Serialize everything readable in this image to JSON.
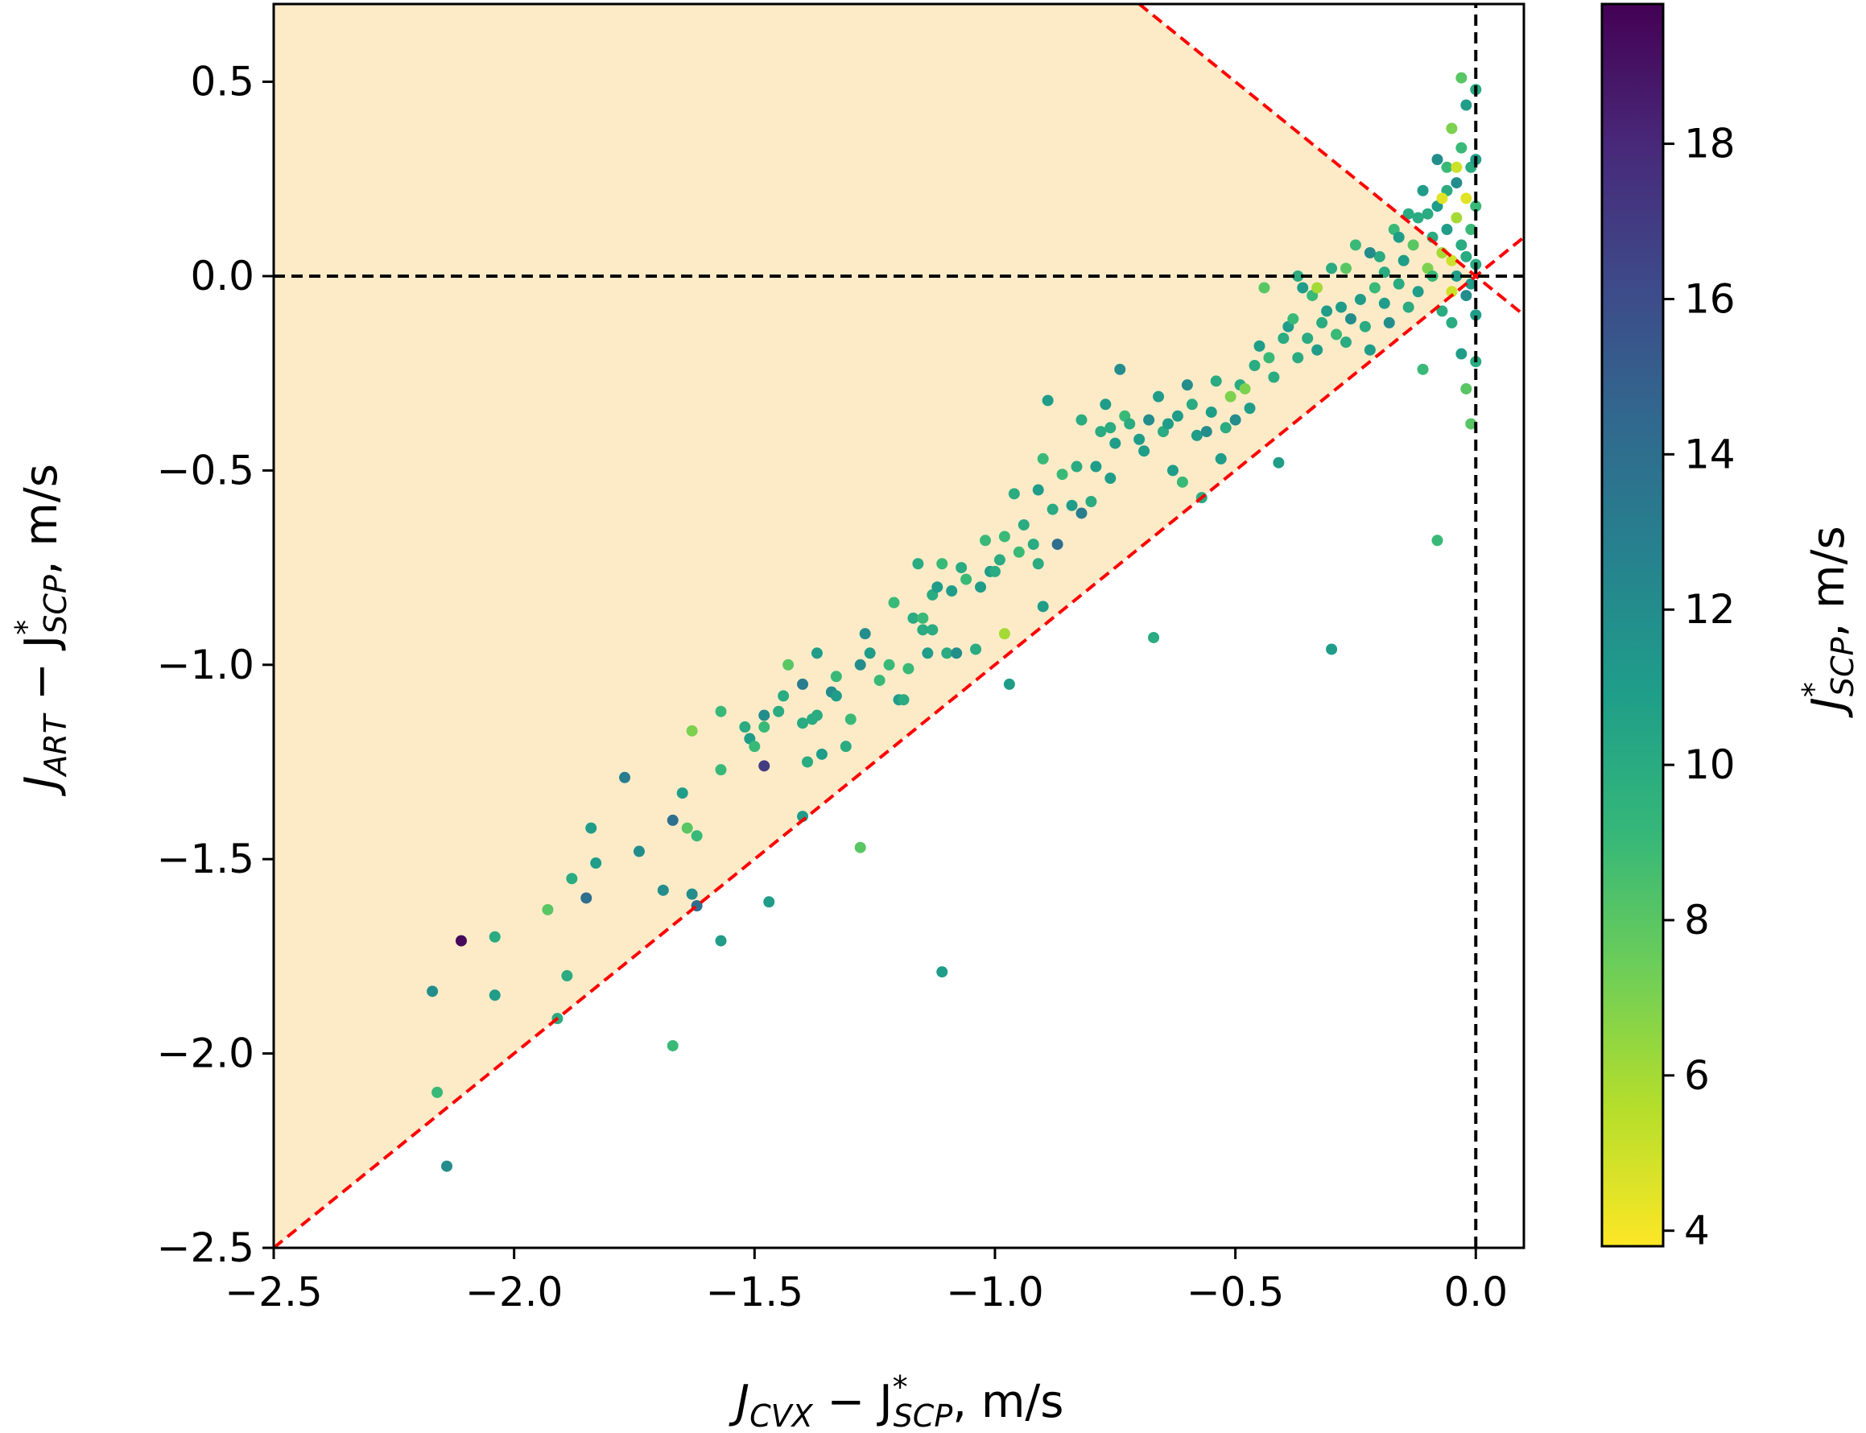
{
  "chart_data": {
    "type": "scatter",
    "title": "",
    "xlabel": {
      "main": "J",
      "sub1": "CVX",
      "mid": " − J",
      "sup": "*",
      "sub2": "SCP",
      "tail": ", m/s"
    },
    "ylabel": {
      "main": "J",
      "sub1": "ART",
      "mid": " − J",
      "sup": "*",
      "sub2": "SCP",
      "tail": ", m/s"
    },
    "colorbar_label": {
      "main": "J",
      "sup": "*",
      "sub": "SCP",
      "tail": ", m/s"
    },
    "xlim": [
      -2.5,
      0.1
    ],
    "ylim": [
      -2.5,
      0.7
    ],
    "xticks": [
      -2.5,
      -2.0,
      -1.5,
      -1.0,
      -0.5,
      0.0
    ],
    "xtick_labels": [
      "−2.5",
      "−2.0",
      "−1.5",
      "−1.0",
      "−0.5",
      "0.0"
    ],
    "yticks": [
      -2.5,
      -2.0,
      -1.5,
      -1.0,
      -0.5,
      0.0,
      0.5
    ],
    "ytick_labels": [
      "−2.5",
      "−2.0",
      "−1.5",
      "−1.0",
      "−0.5",
      "0.0",
      "0.5"
    ],
    "colorbar": {
      "range": [
        3.8,
        19.8
      ],
      "ticks": [
        4,
        6,
        8,
        10,
        12,
        14,
        16,
        18
      ],
      "tick_labels": [
        "4",
        "6",
        "8",
        "10",
        "12",
        "14",
        "16",
        "18"
      ],
      "colormap": "viridis_r",
      "stops": [
        "#fde725",
        "#b5de2b",
        "#6ece58",
        "#35b779",
        "#1f9e89",
        "#26828e",
        "#31688e",
        "#3e4989",
        "#482878",
        "#440154"
      ]
    },
    "shaded_region": {
      "color": "#fdebc8",
      "description": "between y=x and y=-x"
    },
    "reference_lines": [
      {
        "name": "y=x",
        "color": "#ff0000",
        "style": "dashed"
      },
      {
        "name": "y=-x",
        "color": "#ff0000",
        "style": "dashed"
      },
      {
        "name": "x=0",
        "color": "#000000",
        "style": "dashed"
      },
      {
        "name": "y=0",
        "color": "#000000",
        "style": "dashed"
      }
    ],
    "points": [
      [
        -2.11,
        -1.71,
        19.5
      ],
      [
        -2.17,
        -1.84,
        12
      ],
      [
        -2.04,
        -1.7,
        10
      ],
      [
        -2.04,
        -1.85,
        11
      ],
      [
        -2.16,
        -2.1,
        9
      ],
      [
        -2.14,
        -2.29,
        12
      ],
      [
        -1.93,
        -1.63,
        8
      ],
      [
        -1.91,
        -1.91,
        10
      ],
      [
        -1.89,
        -1.8,
        10
      ],
      [
        -1.88,
        -1.55,
        10
      ],
      [
        -1.85,
        -1.6,
        14
      ],
      [
        -1.84,
        -1.42,
        11
      ],
      [
        -1.83,
        -1.51,
        11
      ],
      [
        -1.77,
        -1.29,
        13
      ],
      [
        -1.74,
        -1.48,
        12
      ],
      [
        -1.69,
        -1.58,
        12
      ],
      [
        -1.67,
        -1.4,
        14
      ],
      [
        -1.67,
        -1.98,
        9
      ],
      [
        -1.65,
        -1.33,
        11
      ],
      [
        -1.64,
        -1.42,
        8
      ],
      [
        -1.63,
        -1.59,
        12
      ],
      [
        -1.62,
        -1.44,
        9
      ],
      [
        -1.63,
        -1.17,
        7
      ],
      [
        -1.62,
        -1.62,
        14
      ],
      [
        -1.57,
        -1.71,
        11
      ],
      [
        -1.57,
        -1.27,
        9
      ],
      [
        -1.57,
        -1.12,
        9
      ],
      [
        -1.52,
        -1.16,
        10
      ],
      [
        -1.51,
        -1.19,
        11
      ],
      [
        -1.5,
        -1.21,
        9
      ],
      [
        -1.48,
        -1.26,
        17
      ],
      [
        -1.48,
        -1.13,
        12
      ],
      [
        -1.48,
        -1.16,
        9
      ],
      [
        -1.47,
        -1.61,
        11
      ],
      [
        -1.45,
        -1.12,
        10
      ],
      [
        -1.44,
        -1.08,
        10
      ],
      [
        -1.43,
        -1.0,
        8
      ],
      [
        -1.4,
        -1.15,
        10
      ],
      [
        -1.4,
        -1.05,
        13
      ],
      [
        -1.4,
        -1.39,
        11
      ],
      [
        -1.39,
        -1.25,
        10
      ],
      [
        -1.38,
        -1.14,
        10
      ],
      [
        -1.37,
        -1.13,
        10
      ],
      [
        -1.37,
        -0.97,
        11
      ],
      [
        -1.36,
        -1.23,
        11
      ],
      [
        -1.34,
        -1.07,
        12
      ],
      [
        -1.33,
        -1.08,
        11
      ],
      [
        -1.33,
        -1.03,
        9
      ],
      [
        -1.31,
        -1.21,
        10
      ],
      [
        -1.3,
        -1.14,
        9
      ],
      [
        -1.28,
        -1.47,
        8
      ],
      [
        -1.28,
        -1.0,
        12
      ],
      [
        -1.27,
        -0.92,
        12
      ],
      [
        -1.26,
        -0.97,
        11
      ],
      [
        -1.24,
        -1.04,
        9
      ],
      [
        -1.22,
        -1.0,
        9
      ],
      [
        -1.21,
        -0.84,
        9
      ],
      [
        -1.2,
        -1.09,
        11
      ],
      [
        -1.19,
        -1.09,
        10
      ],
      [
        -1.18,
        -1.01,
        9
      ],
      [
        -1.17,
        -0.88,
        10
      ],
      [
        -1.16,
        -0.74,
        10
      ],
      [
        -1.15,
        -0.88,
        9
      ],
      [
        -1.15,
        -0.91,
        10
      ],
      [
        -1.14,
        -0.97,
        11
      ],
      [
        -1.13,
        -0.91,
        10
      ],
      [
        -1.13,
        -0.82,
        10
      ],
      [
        -1.12,
        -0.8,
        11
      ],
      [
        -1.11,
        -1.79,
        11
      ],
      [
        -1.11,
        -0.74,
        9
      ],
      [
        -1.1,
        -0.97,
        10
      ],
      [
        -1.09,
        -0.81,
        11
      ],
      [
        -1.08,
        -0.97,
        12
      ],
      [
        -1.07,
        -0.75,
        10
      ],
      [
        -1.06,
        -0.78,
        9
      ],
      [
        -1.04,
        -0.96,
        10
      ],
      [
        -1.03,
        -0.8,
        11
      ],
      [
        -1.02,
        -0.68,
        9
      ],
      [
        -1.01,
        -0.76,
        11
      ],
      [
        -1.0,
        -0.76,
        10
      ],
      [
        -0.99,
        -0.73,
        10
      ],
      [
        -0.98,
        -0.92,
        6
      ],
      [
        -0.98,
        -0.67,
        9
      ],
      [
        -0.97,
        -1.05,
        11
      ],
      [
        -0.96,
        -0.56,
        10
      ],
      [
        -0.95,
        -0.71,
        9
      ],
      [
        -0.94,
        -0.64,
        10
      ],
      [
        -0.92,
        -0.69,
        10
      ],
      [
        -0.91,
        -0.74,
        10
      ],
      [
        -0.91,
        -0.55,
        11
      ],
      [
        -0.9,
        -0.85,
        11
      ],
      [
        -0.9,
        -0.47,
        9
      ],
      [
        -0.89,
        -0.32,
        11
      ],
      [
        -0.88,
        -0.6,
        10
      ],
      [
        -0.87,
        -0.69,
        14
      ],
      [
        -0.86,
        -0.51,
        9
      ],
      [
        -0.84,
        -0.59,
        11
      ],
      [
        -0.83,
        -0.49,
        10
      ],
      [
        -0.82,
        -0.61,
        13
      ],
      [
        -0.82,
        -0.37,
        10
      ],
      [
        -0.8,
        -0.58,
        10
      ],
      [
        -0.79,
        -0.49,
        11
      ],
      [
        -0.78,
        -0.4,
        10
      ],
      [
        -0.77,
        -0.33,
        11
      ],
      [
        -0.76,
        -0.52,
        11
      ],
      [
        -0.76,
        -0.39,
        10
      ],
      [
        -0.75,
        -0.43,
        11
      ],
      [
        -0.74,
        -0.24,
        12
      ],
      [
        -0.73,
        -0.36,
        9
      ],
      [
        -0.72,
        -0.38,
        10
      ],
      [
        -0.7,
        -0.42,
        11
      ],
      [
        -0.69,
        -0.45,
        11
      ],
      [
        -0.68,
        -0.37,
        12
      ],
      [
        -0.67,
        -0.93,
        10
      ],
      [
        -0.66,
        -0.31,
        11
      ],
      [
        -0.65,
        -0.4,
        10
      ],
      [
        -0.64,
        -0.38,
        11
      ],
      [
        -0.63,
        -0.5,
        11
      ],
      [
        -0.62,
        -0.36,
        11
      ],
      [
        -0.61,
        -0.53,
        9
      ],
      [
        -0.6,
        -0.28,
        12
      ],
      [
        -0.59,
        -0.33,
        10
      ],
      [
        -0.58,
        -0.41,
        11
      ],
      [
        -0.57,
        -0.57,
        10
      ],
      [
        -0.56,
        -0.4,
        12
      ],
      [
        -0.55,
        -0.35,
        11
      ],
      [
        -0.54,
        -0.27,
        10
      ],
      [
        -0.53,
        -0.47,
        11
      ],
      [
        -0.52,
        -0.39,
        10
      ],
      [
        -0.51,
        -0.31,
        7
      ],
      [
        -0.5,
        -0.37,
        12
      ],
      [
        -0.49,
        -0.28,
        10
      ],
      [
        -0.48,
        -0.29,
        7
      ],
      [
        -0.47,
        -0.34,
        11
      ],
      [
        -0.46,
        -0.23,
        10
      ],
      [
        -0.45,
        -0.18,
        11
      ],
      [
        -0.43,
        -0.21,
        9
      ],
      [
        -0.42,
        -0.26,
        10
      ],
      [
        -0.41,
        -0.48,
        11
      ],
      [
        -0.4,
        -0.16,
        10
      ],
      [
        -0.39,
        -0.13,
        11
      ],
      [
        -0.38,
        -0.11,
        9
      ],
      [
        -0.37,
        -0.21,
        10
      ],
      [
        -0.36,
        -0.03,
        11
      ],
      [
        -0.35,
        -0.16,
        10
      ],
      [
        -0.34,
        -0.05,
        9
      ],
      [
        -0.33,
        -0.19,
        11
      ],
      [
        -0.32,
        -0.12,
        10
      ],
      [
        -0.31,
        -0.09,
        11
      ],
      [
        -0.3,
        -0.96,
        11
      ],
      [
        -0.3,
        0.02,
        10
      ],
      [
        -0.29,
        -0.15,
        9
      ],
      [
        -0.28,
        -0.08,
        11
      ],
      [
        -0.27,
        -0.17,
        10
      ],
      [
        -0.26,
        -0.11,
        12
      ],
      [
        -0.25,
        0.08,
        9
      ],
      [
        -0.24,
        -0.06,
        11
      ],
      [
        -0.23,
        -0.13,
        10
      ],
      [
        -0.22,
        -0.19,
        11
      ],
      [
        -0.21,
        -0.03,
        9
      ],
      [
        -0.2,
        0.05,
        10
      ],
      [
        -0.19,
        -0.07,
        11
      ],
      [
        -0.18,
        -0.12,
        12
      ],
      [
        -0.17,
        0.12,
        9
      ],
      [
        -0.16,
        -0.02,
        10
      ],
      [
        -0.15,
        0.04,
        11
      ],
      [
        -0.14,
        -0.08,
        10
      ],
      [
        -0.13,
        0.08,
        8
      ],
      [
        -0.12,
        0.15,
        10
      ],
      [
        -0.11,
        -0.24,
        9
      ],
      [
        -0.11,
        0.22,
        11
      ],
      [
        -0.1,
        0.02,
        7
      ],
      [
        -0.09,
        0.1,
        10
      ],
      [
        -0.08,
        -0.68,
        9
      ],
      [
        -0.08,
        0.18,
        11
      ],
      [
        -0.07,
        0.06,
        6
      ],
      [
        -0.07,
        -0.09,
        10
      ],
      [
        -0.06,
        0.28,
        9
      ],
      [
        -0.06,
        0.12,
        11
      ],
      [
        -0.05,
        0.04,
        5
      ],
      [
        -0.05,
        0.38,
        7
      ],
      [
        -0.05,
        -0.12,
        10
      ],
      [
        -0.04,
        0.24,
        12
      ],
      [
        -0.04,
        0.15,
        6
      ],
      [
        -0.04,
        0.0,
        11
      ],
      [
        -0.03,
        0.33,
        9
      ],
      [
        -0.03,
        0.08,
        10
      ],
      [
        -0.03,
        -0.2,
        11
      ],
      [
        -0.03,
        0.51,
        8
      ],
      [
        -0.02,
        0.44,
        11
      ],
      [
        -0.02,
        0.2,
        4.5
      ],
      [
        -0.02,
        0.05,
        10
      ],
      [
        -0.02,
        -0.05,
        12
      ],
      [
        -0.01,
        0.28,
        10
      ],
      [
        -0.01,
        0.12,
        9
      ],
      [
        -0.01,
        -0.02,
        11
      ],
      [
        -0.01,
        -0.38,
        8
      ],
      [
        0.0,
        0.48,
        10
      ],
      [
        0.0,
        0.3,
        11
      ],
      [
        0.0,
        0.18,
        9
      ],
      [
        0.0,
        0.03,
        10
      ],
      [
        0.0,
        -0.1,
        11
      ],
      [
        0.0,
        -0.22,
        10
      ],
      [
        -0.02,
        -0.29,
        8
      ],
      [
        -0.06,
        0.22,
        10
      ],
      [
        -0.08,
        0.3,
        12
      ],
      [
        -0.09,
        0.0,
        9
      ],
      [
        -0.12,
        -0.04,
        11
      ],
      [
        -0.14,
        0.16,
        10
      ],
      [
        -0.16,
        0.1,
        11
      ],
      [
        -0.19,
        0.01,
        10
      ],
      [
        -0.22,
        0.06,
        12
      ],
      [
        -0.27,
        0.02,
        8
      ],
      [
        -0.33,
        -0.03,
        6
      ],
      [
        -0.37,
        0.0,
        10
      ],
      [
        -0.44,
        -0.03,
        8
      ],
      [
        -0.05,
        -0.04,
        5
      ],
      [
        -0.07,
        0.2,
        4.5
      ],
      [
        -0.04,
        0.28,
        5
      ],
      [
        -0.1,
        0.16,
        10
      ]
    ]
  }
}
